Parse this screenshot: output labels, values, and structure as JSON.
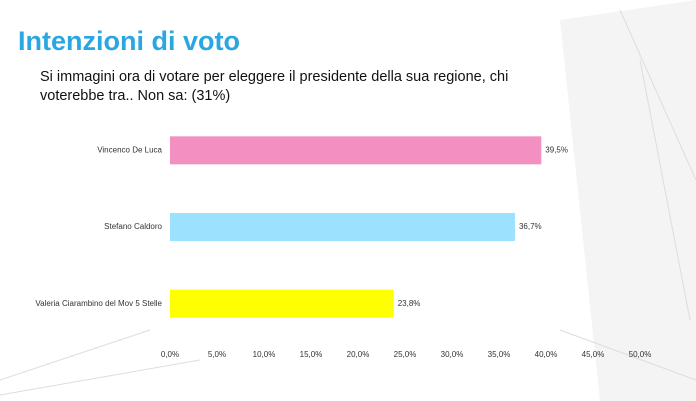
{
  "chart_data": {
    "type": "bar",
    "orientation": "horizontal",
    "title": "Intenzioni di voto",
    "subtitle": "Si immagini ora di votare per eleggere il presidente della sua regione, chi voterebbe tra..  Non sa: (31%)",
    "categories": [
      "Vincenco De Luca",
      "Stefano Caldoro",
      "Valeria Ciarambino del Mov 5 Stelle"
    ],
    "values": [
      39.5,
      36.7,
      23.8
    ],
    "value_labels": [
      "39,5%",
      "36,7%",
      "23,8%"
    ],
    "colors": [
      "#f48fc1",
      "#9ce2ff",
      "#ffff00"
    ],
    "xlim": [
      0,
      50
    ],
    "xticks": [
      {
        "value": 0,
        "label": "0,0%"
      },
      {
        "value": 5,
        "label": "5,0%"
      },
      {
        "value": 10,
        "label": "10,0%"
      },
      {
        "value": 15,
        "label": "15,0%"
      },
      {
        "value": 20,
        "label": "20,0%"
      },
      {
        "value": 25,
        "label": "25,0%"
      },
      {
        "value": 30,
        "label": "30,0%"
      },
      {
        "value": 35,
        "label": "35,0%"
      },
      {
        "value": 40,
        "label": "40,0%"
      },
      {
        "value": 45,
        "label": "45,0%"
      },
      {
        "value": 50,
        "label": "50,0%"
      }
    ],
    "grid": false
  }
}
